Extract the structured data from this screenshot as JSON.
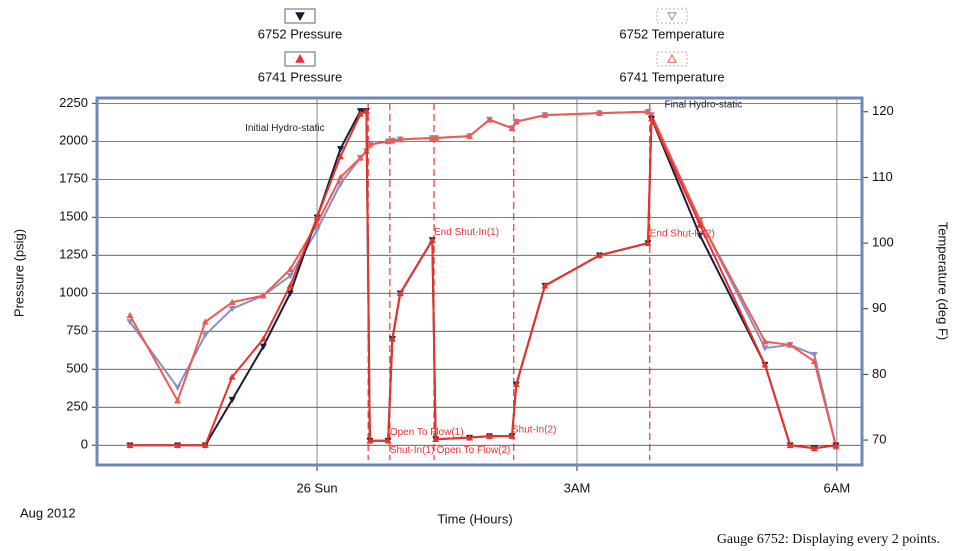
{
  "chart_data": {
    "type": "line",
    "y_label": "Pressure (psig)",
    "y2_label": "Temperature (deg F)",
    "x_label": "Time (Hours)",
    "date_label": "Aug 2012",
    "footer": "Gauge 6752: Displaying every 2 points.",
    "xlim": [
      -2.54,
      6.29
    ],
    "xticks": [
      {
        "value": 0,
        "label": "26 Sun"
      },
      {
        "value": 3,
        "label": "3AM"
      },
      {
        "value": 6,
        "label": "6AM"
      }
    ],
    "ylim": [
      -130,
      2285
    ],
    "yticks": [
      0,
      250,
      500,
      750,
      1000,
      1250,
      1500,
      1750,
      2000,
      2250
    ],
    "y2lim": [
      66.2,
      122.1
    ],
    "y2ticks": [
      70,
      80,
      90,
      100,
      110,
      120
    ],
    "grid": true,
    "x": [
      -2.16,
      -1.61,
      -1.29,
      -0.98,
      -0.62,
      -0.31,
      0,
      0.27,
      0.5,
      0.57,
      0.61,
      0.82,
      0.87,
      0.96,
      1.33,
      1.37,
      1.76,
      1.99,
      2.25,
      2.3,
      2.63,
      3.26,
      3.82,
      3.86,
      4.42,
      5.17,
      5.46,
      5.74,
      5.99
    ],
    "series": [
      {
        "name": "6752 Pressure",
        "color": "#1a1a3a",
        "marker": "down",
        "values": [
          0,
          0,
          0,
          300,
          650,
          1000,
          1500,
          1950,
          2200,
          2200,
          30,
          30,
          700,
          1000,
          1350,
          40,
          50,
          60,
          60,
          400,
          1050,
          1250,
          1330,
          2150,
          1380,
          530,
          0,
          -20,
          0
        ]
      },
      {
        "name": "6741 Pressure",
        "color": "#e8332a",
        "marker": "up",
        "values": [
          0,
          0,
          0,
          450,
          700,
          1050,
          1500,
          1900,
          2180,
          2200,
          30,
          30,
          700,
          1000,
          1350,
          40,
          50,
          60,
          60,
          400,
          1050,
          1250,
          1330,
          2150,
          1450,
          530,
          0,
          -20,
          0
        ]
      },
      {
        "name": "6752 Temperature",
        "color": "#8a8fc8",
        "marker": "down",
        "axis": "y2",
        "values": [
          88,
          78,
          86,
          90,
          92,
          95,
          102,
          109,
          113,
          114,
          115,
          115.5,
          115.6,
          115.8,
          116,
          116,
          116.3,
          118.8,
          117.5,
          118.5,
          119.5,
          119.8,
          120,
          119.5,
          103.5,
          84,
          84.5,
          83,
          69
        ]
      },
      {
        "name": "6741 Temperature",
        "color": "#f05a50",
        "marker": "up",
        "axis": "y2",
        "values": [
          89,
          76,
          88,
          91,
          92,
          96,
          103,
          110,
          113,
          114,
          115,
          115.5,
          115.6,
          115.8,
          116,
          116,
          116.3,
          118.8,
          117.5,
          118.5,
          119.5,
          119.8,
          120,
          119.5,
          103.5,
          85,
          84.5,
          82,
          69
        ]
      }
    ],
    "events": [
      0.59,
      0.84,
      1.35,
      2.27,
      3.84
    ],
    "annotations": [
      {
        "text": "Initial Hydro-static",
        "x": -0.83,
        "y": 2085
      },
      {
        "text": "Final Hydro-static",
        "x": 4.01,
        "y": 2240
      },
      {
        "text": "End Shut-In(1)",
        "x": 1.35,
        "y": 1400
      },
      {
        "text": "End Shut-In(2)",
        "x": 3.84,
        "y": 1390
      },
      {
        "text": "Open To Flow(1)",
        "x": 0.84,
        "y": 85
      },
      {
        "text": "Shut-In(1)",
        "x": 0.84,
        "y": -35
      },
      {
        "text": "Open To Flow(2)",
        "x": 1.38,
        "y": -35
      },
      {
        "text": "Shut-In(2)",
        "x": 2.25,
        "y": 100
      }
    ]
  }
}
